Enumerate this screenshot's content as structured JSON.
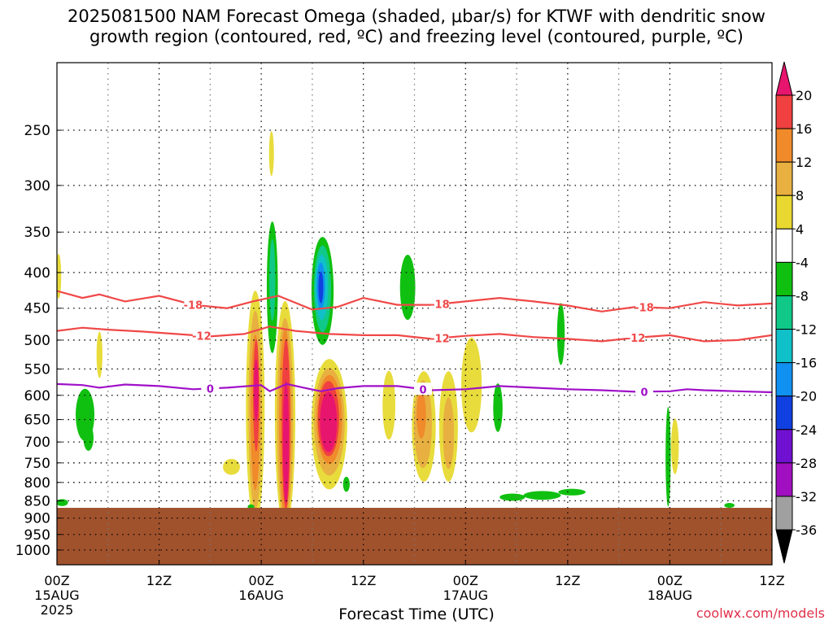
{
  "title": {
    "line1": "2025081500 NAM Forecast Omega (shaded, μbar/s) for KTWF with dendritic snow",
    "line2": "growth region (contoured, red, ºC) and freezing level (contoured, purple, ºC)"
  },
  "credit": "coolwx.com/models",
  "chart_data": {
    "type": "heatmap",
    "title": "2025081500 NAM Forecast Omega (shaded, μbar/s) for KTWF with dendritic snow growth region (contoured, red, ºC) and freezing level (contoured, purple, ºC)",
    "xlabel": "Forecast Time (UTC)",
    "ylabel": "",
    "y_scale": "log-pressure",
    "ylim_hpa": [
      1050,
      200
    ],
    "xlim_hours": [
      0,
      84
    ],
    "pressure_levels": [
      250,
      300,
      350,
      400,
      450,
      500,
      550,
      600,
      650,
      700,
      750,
      800,
      850,
      900,
      950,
      1000
    ],
    "time_ticks": [
      {
        "hour": 0,
        "label": "00Z",
        "sub": "15AUG",
        "sub2": "2025"
      },
      {
        "hour": 12,
        "label": "12Z",
        "sub": "",
        "sub2": ""
      },
      {
        "hour": 24,
        "label": "00Z",
        "sub": "16AUG",
        "sub2": ""
      },
      {
        "hour": 36,
        "label": "12Z",
        "sub": "",
        "sub2": ""
      },
      {
        "hour": 48,
        "label": "00Z",
        "sub": "17AUG",
        "sub2": ""
      },
      {
        "hour": 60,
        "label": "12Z",
        "sub": "",
        "sub2": ""
      },
      {
        "hour": 72,
        "label": "00Z",
        "sub": "18AUG",
        "sub2": ""
      },
      {
        "hour": 84,
        "label": "12Z",
        "sub": "",
        "sub2": ""
      }
    ],
    "grid": true,
    "colorbar": {
      "labels": [
        "20",
        "16",
        "12",
        "8",
        "4",
        "-4",
        "-8",
        "-12",
        "-16",
        "-20",
        "-24",
        "-28",
        "-32",
        "-36"
      ],
      "colors": [
        "#e8156e",
        "#f04040",
        "#f08a2a",
        "#e8b040",
        "#e8d830",
        "#ffffff",
        "#10c010",
        "#10c888",
        "#10c0c8",
        "#1090f0",
        "#1040e0",
        "#7010d0",
        "#a010c0",
        "#a0a0a0",
        "#000000"
      ]
    },
    "shading_colors": {
      "pos4": "#e8dc3c",
      "pos8": "#e8b040",
      "pos12": "#f08a2a",
      "pos16": "#f04040",
      "pos20": "#e8156e",
      "neg4": "#10c010",
      "neg8": "#10c888",
      "neg12": "#10c0c8",
      "neg16": "#1090f0",
      "neg20": "#1040e0"
    },
    "terrain_color": "#a0522d",
    "surface_pressure_hpa": 870,
    "contours": [
      {
        "label": "-18",
        "color": "#f04848",
        "points": [
          [
            0,
            425
          ],
          [
            3,
            435
          ],
          [
            5,
            430
          ],
          [
            8,
            440
          ],
          [
            12,
            432
          ],
          [
            16,
            445
          ],
          [
            20,
            450
          ],
          [
            23,
            440
          ],
          [
            26,
            432
          ],
          [
            30,
            452
          ],
          [
            33,
            448
          ],
          [
            36,
            435
          ],
          [
            40,
            445
          ],
          [
            44,
            445
          ],
          [
            48,
            440
          ],
          [
            52,
            435
          ],
          [
            56,
            440
          ],
          [
            60,
            446
          ],
          [
            64,
            455
          ],
          [
            68,
            448
          ],
          [
            72,
            450
          ],
          [
            76,
            441
          ],
          [
            80,
            446
          ],
          [
            84,
            443
          ]
        ],
        "label_hours": [
          16,
          45,
          69
        ]
      },
      {
        "label": "-12",
        "color": "#f04848",
        "points": [
          [
            0,
            485
          ],
          [
            3,
            480
          ],
          [
            6,
            483
          ],
          [
            10,
            486
          ],
          [
            14,
            490
          ],
          [
            18,
            494
          ],
          [
            22,
            490
          ],
          [
            25,
            478
          ],
          [
            28,
            485
          ],
          [
            32,
            490
          ],
          [
            36,
            492
          ],
          [
            40,
            492
          ],
          [
            44,
            498
          ],
          [
            48,
            493
          ],
          [
            52,
            490
          ],
          [
            56,
            495
          ],
          [
            60,
            498
          ],
          [
            64,
            502
          ],
          [
            68,
            496
          ],
          [
            72,
            492
          ],
          [
            76,
            502
          ],
          [
            80,
            500
          ],
          [
            84,
            492
          ]
        ],
        "label_hours": [
          17,
          45,
          68
        ]
      },
      {
        "label": "0",
        "color": "#a010c8",
        "points": [
          [
            0,
            578
          ],
          [
            3,
            580
          ],
          [
            5,
            585
          ],
          [
            8,
            579
          ],
          [
            12,
            582
          ],
          [
            16,
            588
          ],
          [
            20,
            585
          ],
          [
            24,
            580
          ],
          [
            25,
            592
          ],
          [
            27,
            578
          ],
          [
            29,
            585
          ],
          [
            31,
            592
          ],
          [
            33,
            586
          ],
          [
            36,
            582
          ],
          [
            40,
            582
          ],
          [
            44,
            590
          ],
          [
            48,
            588
          ],
          [
            52,
            582
          ],
          [
            56,
            585
          ],
          [
            60,
            588
          ],
          [
            64,
            590
          ],
          [
            68,
            593
          ],
          [
            72,
            592
          ],
          [
            74,
            588
          ],
          [
            76,
            590
          ],
          [
            80,
            592
          ],
          [
            84,
            594
          ]
        ],
        "label_hours": [
          18,
          43,
          69
        ]
      }
    ]
  }
}
